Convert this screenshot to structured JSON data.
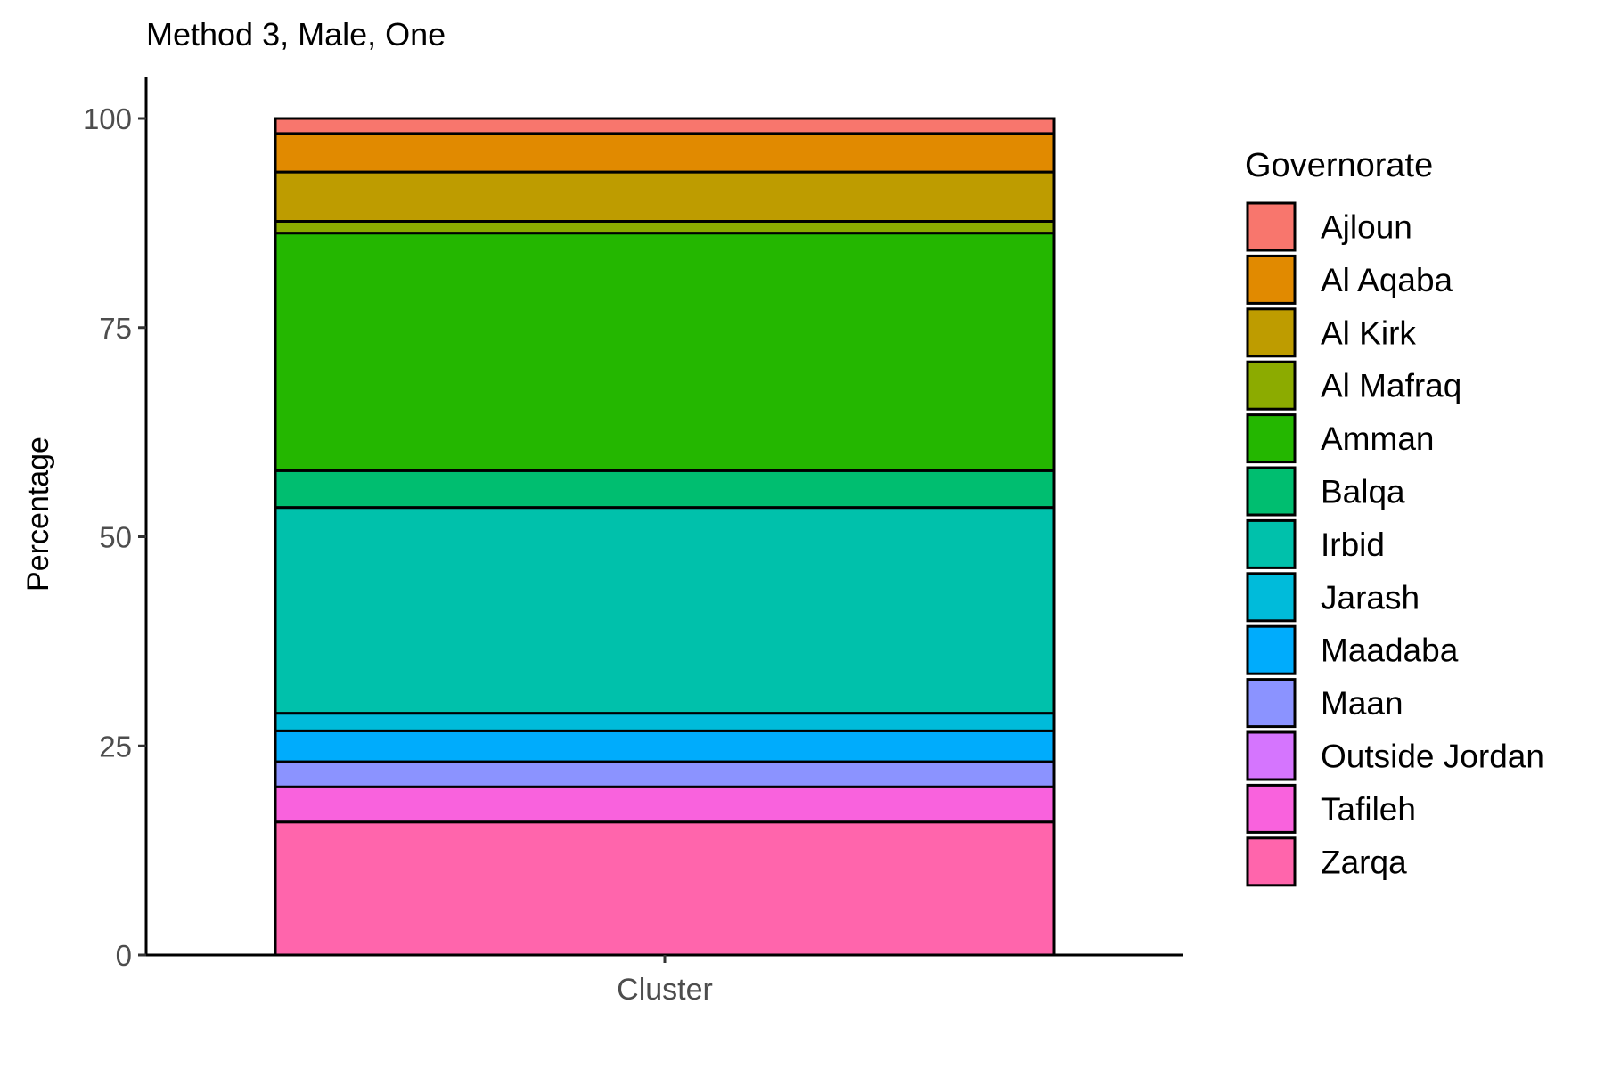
{
  "chart_data": {
    "type": "bar",
    "stacked": true,
    "title": "Method 3, Male, One",
    "xlabel": "",
    "ylabel": "Percentage",
    "categories": [
      "Cluster"
    ],
    "ylim": [
      0,
      105
    ],
    "yticks": [
      0,
      25,
      50,
      75,
      100
    ],
    "grid": false,
    "legend": {
      "title": "Governorate",
      "position": "right"
    },
    "series": [
      {
        "name": "Ajloun",
        "color": "#F8766D",
        "values": [
          1.8
        ]
      },
      {
        "name": "Al Aqaba",
        "color": "#E18A00",
        "values": [
          4.6
        ]
      },
      {
        "name": "Al Kirk",
        "color": "#BE9C00",
        "values": [
          5.9
        ]
      },
      {
        "name": "Al Mafraq",
        "color": "#8CAB00",
        "values": [
          1.4
        ]
      },
      {
        "name": "Amman",
        "color": "#24B700",
        "values": [
          28.4
        ]
      },
      {
        "name": "Balqa",
        "color": "#00BE70",
        "values": [
          4.4
        ]
      },
      {
        "name": "Irbid",
        "color": "#00C1AB",
        "values": [
          24.6
        ]
      },
      {
        "name": "Jarash",
        "color": "#00BBDA",
        "values": [
          2.1
        ]
      },
      {
        "name": "Maadaba",
        "color": "#00ACFC",
        "values": [
          3.7
        ]
      },
      {
        "name": "Maan",
        "color": "#8B93FF",
        "values": [
          3.0
        ]
      },
      {
        "name": "Outside Jordan",
        "color": "#D575FE",
        "values": [
          0.0
        ]
      },
      {
        "name": "Tafileh",
        "color": "#F962DD",
        "values": [
          4.2
        ]
      },
      {
        "name": "Zarqa",
        "color": "#FF65AC",
        "values": [
          15.9
        ]
      }
    ]
  }
}
